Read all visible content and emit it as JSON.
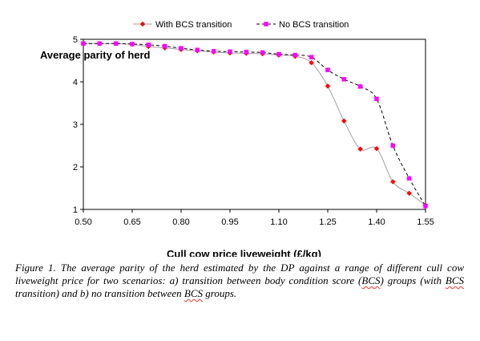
{
  "chart_data": {
    "type": "line",
    "ylabel": "Average parity of herd",
    "xlabel_pre": "Cull cow price ",
    "xlabel_mid": "liveweight",
    "xlabel_post": " (£/kg)",
    "xlim": [
      0.5,
      1.55
    ],
    "ylim": [
      1,
      5
    ],
    "x_ticks": [
      "0.50",
      "0.65",
      "0.80",
      "0.95",
      "1.10",
      "1.25",
      "1.40",
      "1.55"
    ],
    "y_ticks": [
      "1",
      "2",
      "3",
      "4",
      "5"
    ],
    "legend_position": "top",
    "x": [
      0.5,
      0.55,
      0.6,
      0.65,
      0.7,
      0.75,
      0.8,
      0.85,
      0.9,
      0.95,
      1.0,
      1.05,
      1.1,
      1.15,
      1.2,
      1.25,
      1.3,
      1.35,
      1.4,
      1.45,
      1.5,
      1.55
    ],
    "series": [
      {
        "name": "With BCS transition",
        "color": "#ff0000",
        "line_color": "#a0a0a0",
        "line_style": "solid",
        "marker": "diamond",
        "values": [
          4.9,
          4.9,
          4.9,
          4.88,
          4.83,
          4.8,
          4.76,
          4.73,
          4.7,
          4.68,
          4.67,
          4.66,
          4.63,
          4.6,
          4.45,
          3.9,
          3.08,
          2.42,
          2.43,
          1.65,
          1.38,
          1.1
        ]
      },
      {
        "name": "No BCS transition",
        "color": "#ff00ff",
        "line_color": "#000000",
        "line_style": "dashed",
        "marker": "square",
        "values": [
          4.9,
          4.9,
          4.9,
          4.89,
          4.87,
          4.84,
          4.79,
          4.75,
          4.72,
          4.71,
          4.7,
          4.69,
          4.65,
          4.63,
          4.58,
          4.28,
          4.06,
          3.89,
          3.6,
          2.5,
          1.73,
          1.08
        ]
      }
    ]
  },
  "caption": {
    "p1": "Figure 1. The average parity of the herd estimated by the DP against a range of different cull cow liveweight price for two scenarios: a) transition between body condition score (",
    "w1": "BCS",
    "p2": ") groups (with ",
    "w2": "BCS",
    "p3": " transition) and b) no transition between ",
    "w3": "BCS",
    "p4": " groups."
  }
}
